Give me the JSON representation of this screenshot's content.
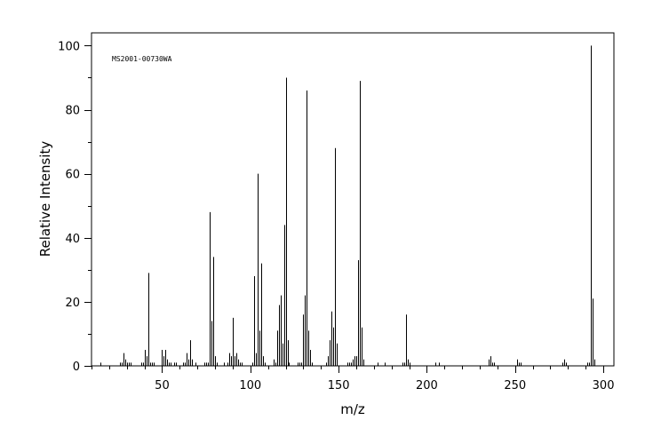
{
  "chart_data": {
    "type": "bar",
    "title": "",
    "annotation": "MS2001-00730WA",
    "xlabel": "m/z",
    "ylabel": "Relative Intensity",
    "xlim": [
      10,
      306
    ],
    "ylim": [
      0,
      104
    ],
    "xticks": [
      50,
      100,
      150,
      200,
      250,
      300
    ],
    "yticks": [
      0,
      20,
      40,
      60,
      80,
      100
    ],
    "grid": false,
    "colors": {
      "bars": "#000000",
      "axes": "#000000",
      "background": "#ffffff"
    },
    "series": [
      {
        "x": [
          15,
          26,
          27,
          28,
          29,
          30,
          31,
          32,
          38,
          39,
          40,
          41,
          42,
          43,
          44,
          45,
          50,
          51,
          52,
          53,
          54,
          55,
          57,
          58,
          62,
          63,
          64,
          65,
          66,
          67,
          69,
          74,
          75,
          76,
          77,
          78,
          79,
          80,
          81,
          85,
          87,
          88,
          89,
          90,
          91,
          92,
          93,
          94,
          95,
          101,
          102,
          103,
          104,
          105,
          106,
          107,
          108,
          113,
          114,
          115,
          116,
          117,
          118,
          119,
          120,
          121,
          122,
          127,
          128,
          129,
          130,
          131,
          132,
          133,
          134,
          135,
          143,
          144,
          145,
          146,
          147,
          148,
          149,
          155,
          156,
          157,
          158,
          159,
          160,
          161,
          162,
          163,
          164,
          172,
          176,
          186,
          187,
          188,
          189,
          190,
          205,
          207,
          235,
          236,
          237,
          238,
          251,
          252,
          253,
          277,
          278,
          279,
          291,
          292,
          293,
          294,
          295
        ],
        "values": [
          1,
          1,
          1,
          4,
          2,
          1,
          1,
          1,
          1,
          1,
          5,
          3,
          29,
          1,
          1,
          1,
          5,
          3,
          5,
          2,
          1,
          1,
          1,
          1,
          1,
          1,
          4,
          2,
          8,
          2,
          1,
          1,
          1,
          1,
          48,
          14,
          34,
          3,
          1,
          1,
          1,
          4,
          3,
          15,
          3,
          4,
          2,
          1,
          1,
          1,
          28,
          4,
          60,
          11,
          32,
          3,
          1,
          2,
          1,
          11,
          19,
          22,
          7,
          44,
          90,
          8,
          1,
          1,
          1,
          1,
          16,
          22,
          86,
          11,
          5,
          1,
          1,
          3,
          8,
          17,
          12,
          68,
          7,
          1,
          1,
          1,
          2,
          3,
          3,
          33,
          89,
          12,
          2,
          1,
          1,
          1,
          1,
          16,
          2,
          1,
          1,
          1,
          2,
          3,
          1,
          1,
          2,
          1,
          1,
          1,
          2,
          1,
          1,
          1,
          100,
          21,
          2
        ]
      }
    ]
  }
}
